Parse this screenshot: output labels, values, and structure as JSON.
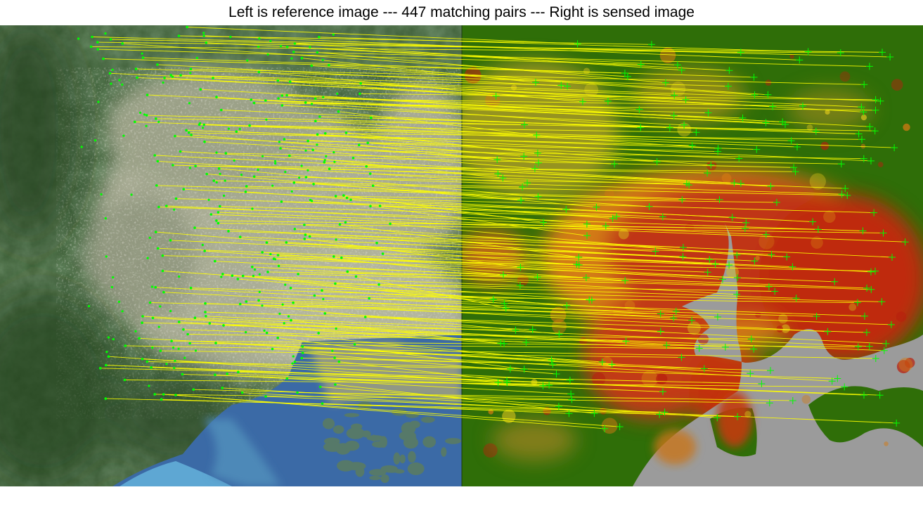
{
  "figure": {
    "title": "Left is reference image --- 447 matching pairs --- Right is sensed image"
  },
  "images": {
    "reference": {
      "name": "reference satellite image",
      "side": "left"
    },
    "sensed": {
      "name": "sensed heat-map image",
      "side": "right"
    }
  },
  "matching": {
    "pair_count": 447,
    "line_color": "#ffff00",
    "marker_color": "#00ff00",
    "rendered_sample_lines": 220
  },
  "colors": {
    "background": "#ffffff",
    "vegetation_dark": "#2d4a2a",
    "vegetation_mid": "#4a6b41",
    "urban_light": "#c9c7b5",
    "sea_deep": "#2f63a8",
    "sea_shallow": "#5d9fc8",
    "sensed_green": "#2f6e08",
    "sensed_yellow": "#d8c31c",
    "sensed_orange": "#d47a12",
    "sensed_red": "#b81f0e",
    "sensed_water": "#9b9b9b"
  }
}
